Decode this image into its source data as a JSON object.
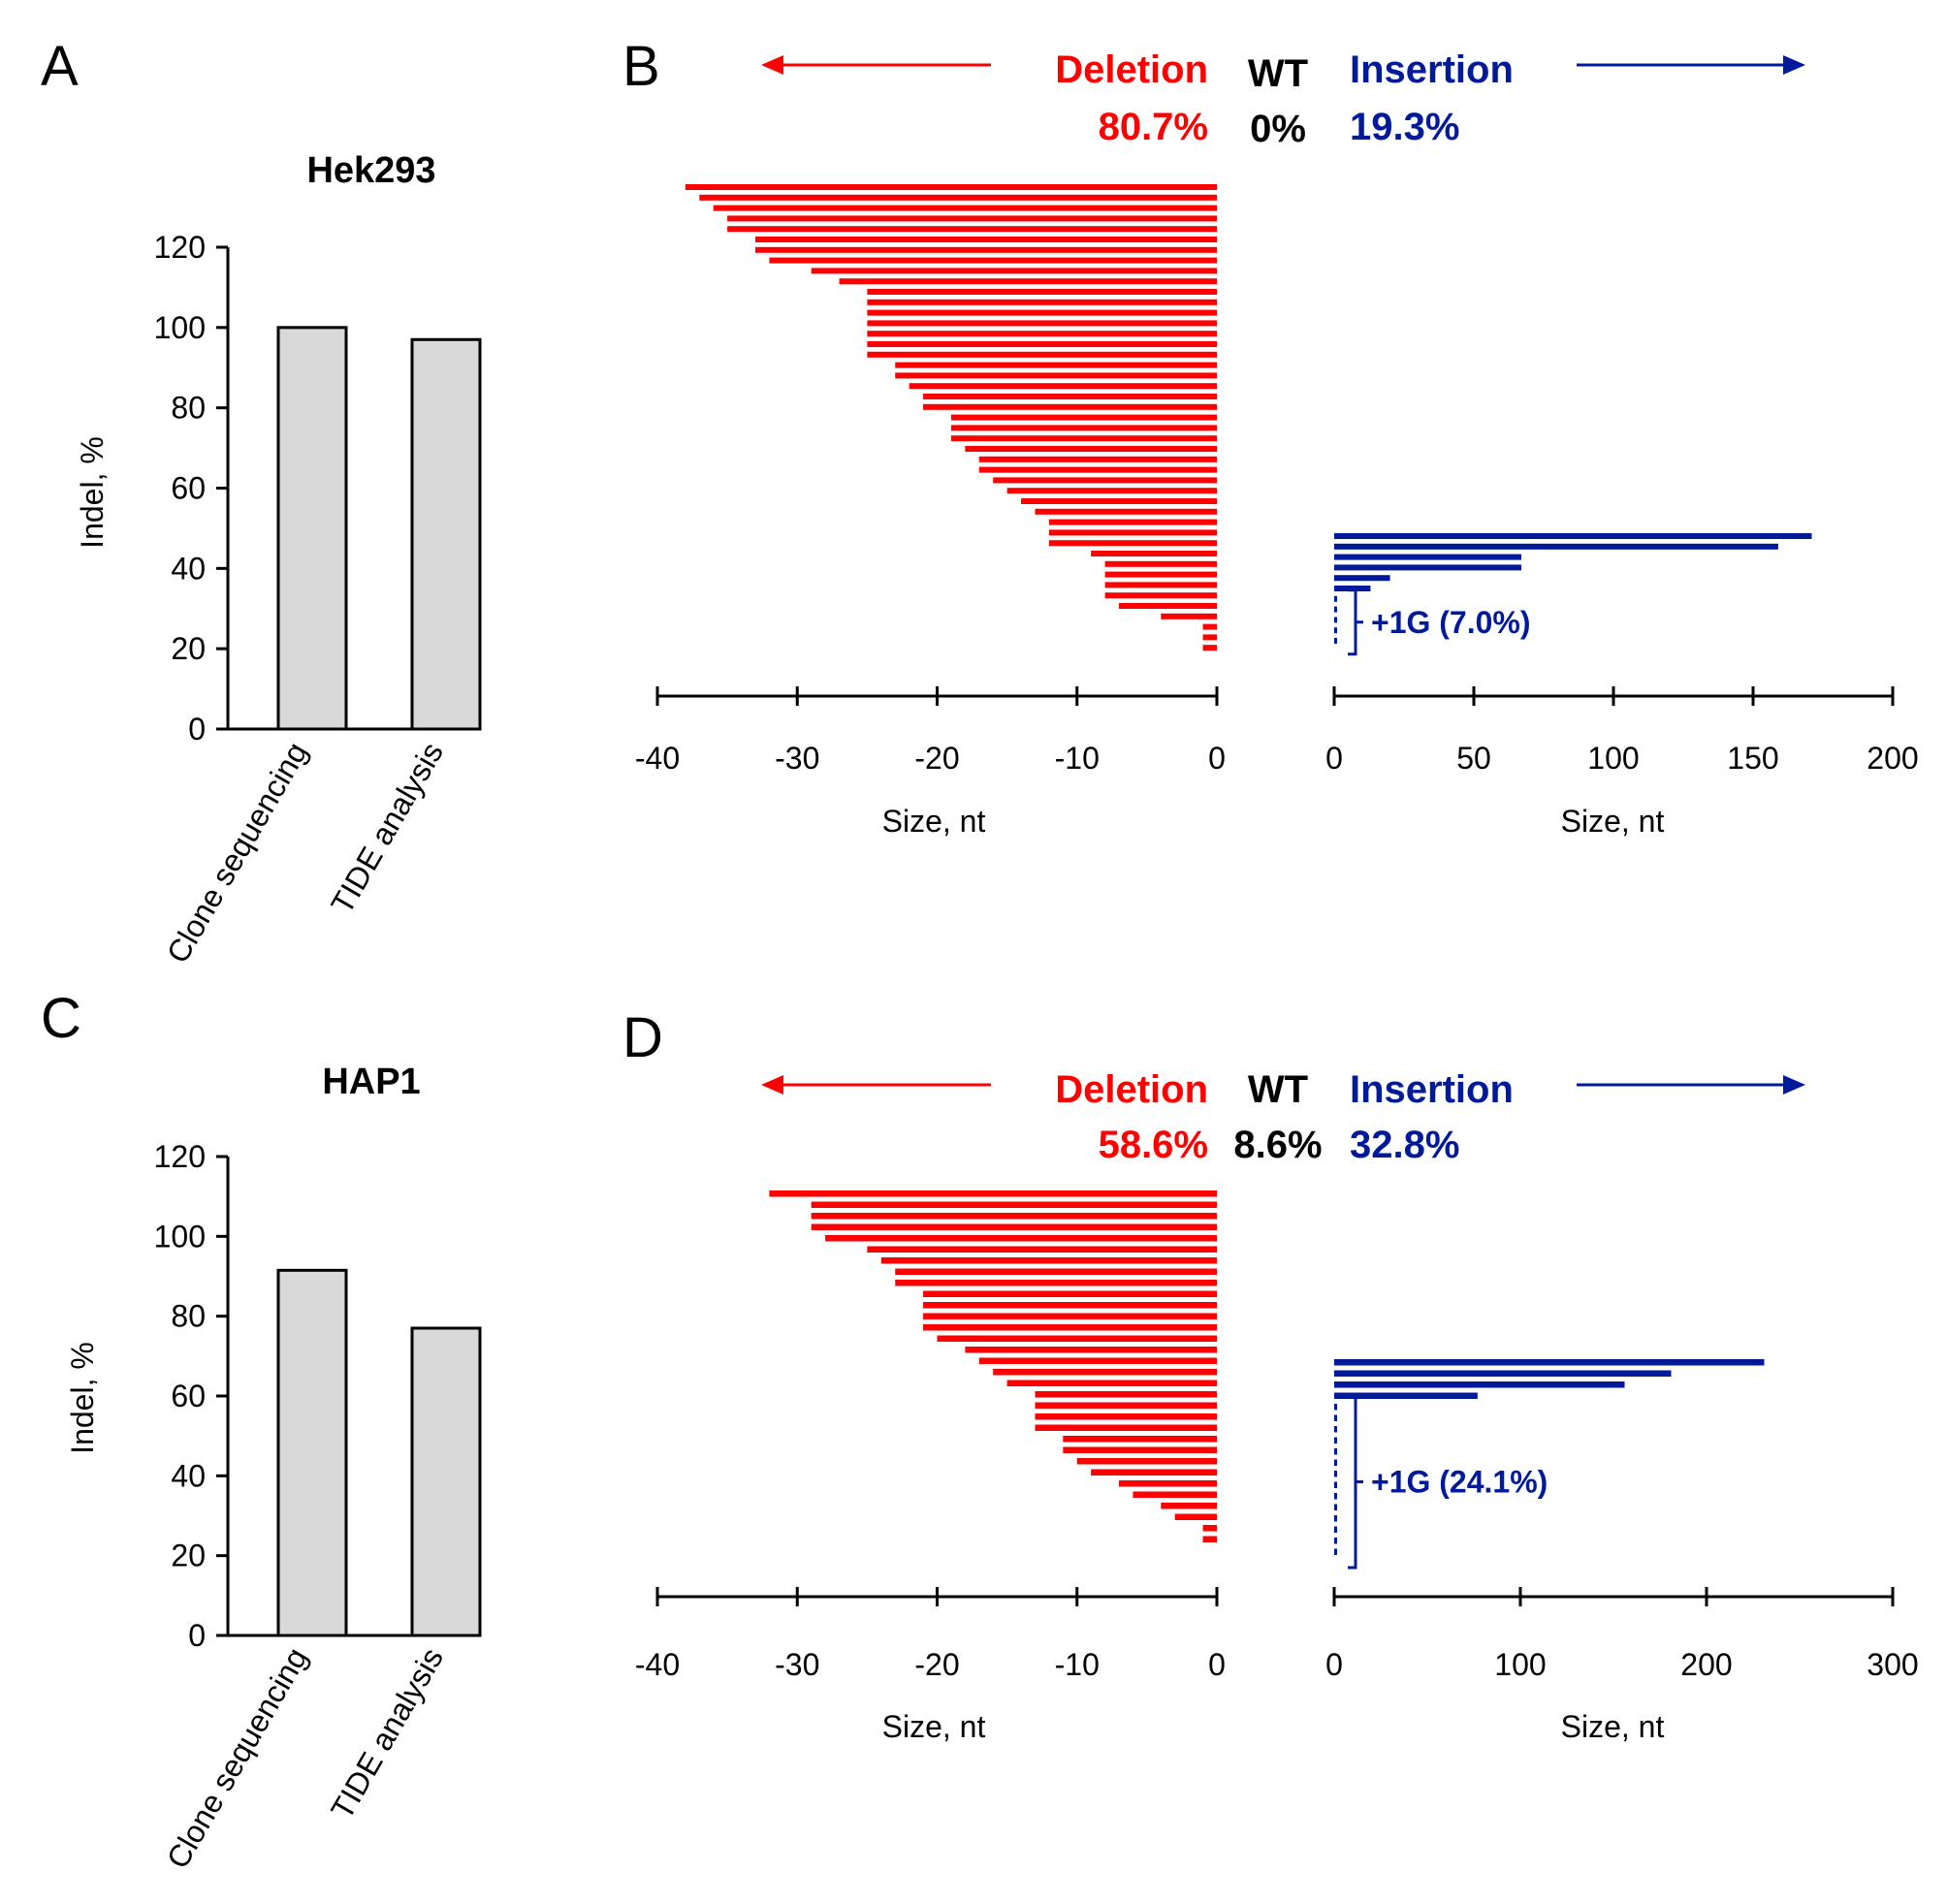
{
  "colors": {
    "deletion": "#ff0000",
    "insertion": "#001a99",
    "bar_fill": "#d9d9d9",
    "axis": "#000000"
  },
  "chart_data": [
    {
      "panel": "A",
      "type": "bar",
      "title": "Hek293",
      "categories": [
        "Clone sequencing",
        "TIDE analysis"
      ],
      "values": [
        100,
        97
      ],
      "ylabel": "Indel, %",
      "xlabel": "",
      "ylim": [
        0,
        120
      ],
      "yticks": [
        "0",
        "20",
        "40",
        "60",
        "80",
        "100",
        "120"
      ]
    },
    {
      "panel": "B",
      "type": "bar",
      "orientation": "horizontal",
      "header": {
        "deletion_label": "Deletion",
        "deletion_pct": "80.7%",
        "wt_label": "WT",
        "wt_pct": "0%",
        "insertion_label": "Insertion",
        "insertion_pct": "19.3%"
      },
      "deletion": {
        "xlim": [
          -40,
          0
        ],
        "xticks": [
          "-40",
          "-30",
          "-20",
          "-10",
          "0"
        ],
        "xlabel": "Size, nt",
        "values": [
          -38,
          -37,
          -36,
          -35,
          -35,
          -33,
          -33,
          -32,
          -29,
          -27,
          -25,
          -25,
          -25,
          -25,
          -25,
          -25,
          -25,
          -23,
          -23,
          -22,
          -21,
          -21,
          -19,
          -19,
          -19,
          -18,
          -17,
          -17,
          -16,
          -15,
          -14,
          -13,
          -12,
          -12,
          -12,
          -9,
          -8,
          -8,
          -8,
          -8,
          -7,
          -4,
          -1,
          -1,
          -1
        ]
      },
      "insertion": {
        "xlim": [
          0,
          200
        ],
        "xticks": [
          "0",
          "50",
          "100",
          "150",
          "200"
        ],
        "xlabel": "Size, nt",
        "values": [
          171,
          159,
          67,
          67,
          20,
          13
        ],
        "plus1g_rows": 5,
        "annotation": "+1G (7.0%)"
      }
    },
    {
      "panel": "C",
      "type": "bar",
      "title": "HAP1",
      "categories": [
        "Clone sequencing",
        "TIDE analysis"
      ],
      "values": [
        91.5,
        77
      ],
      "ylabel": "Indel, %",
      "xlabel": "",
      "ylim": [
        0,
        120
      ],
      "yticks": [
        "0",
        "20",
        "40",
        "60",
        "80",
        "100",
        "120"
      ]
    },
    {
      "panel": "D",
      "type": "bar",
      "orientation": "horizontal",
      "header": {
        "deletion_label": "Deletion",
        "deletion_pct": "58.6%",
        "wt_label": "WT",
        "wt_pct": "8.6%",
        "insertion_label": "Insertion",
        "insertion_pct": "32.8%"
      },
      "deletion": {
        "xlim": [
          -40,
          0
        ],
        "xticks": [
          "-40",
          "-30",
          "-20",
          "-10",
          "0"
        ],
        "xlabel": "Size, nt",
        "values": [
          -32,
          -29,
          -29,
          -29,
          -28,
          -25,
          -24,
          -23,
          -23,
          -21,
          -21,
          -21,
          -21,
          -20,
          -18,
          -17,
          -16,
          -15,
          -13,
          -13,
          -13,
          -13,
          -11,
          -11,
          -10,
          -9,
          -7,
          -6,
          -4,
          -3,
          -1,
          -1
        ]
      },
      "insertion": {
        "xlim": [
          0,
          300
        ],
        "xticks": [
          "0",
          "100",
          "200",
          "300"
        ],
        "xlabel": "Size, nt",
        "values": [
          231,
          181,
          156,
          77
        ],
        "plus1g_rows": 14,
        "annotation": "+1G (24.1%)"
      }
    }
  ]
}
